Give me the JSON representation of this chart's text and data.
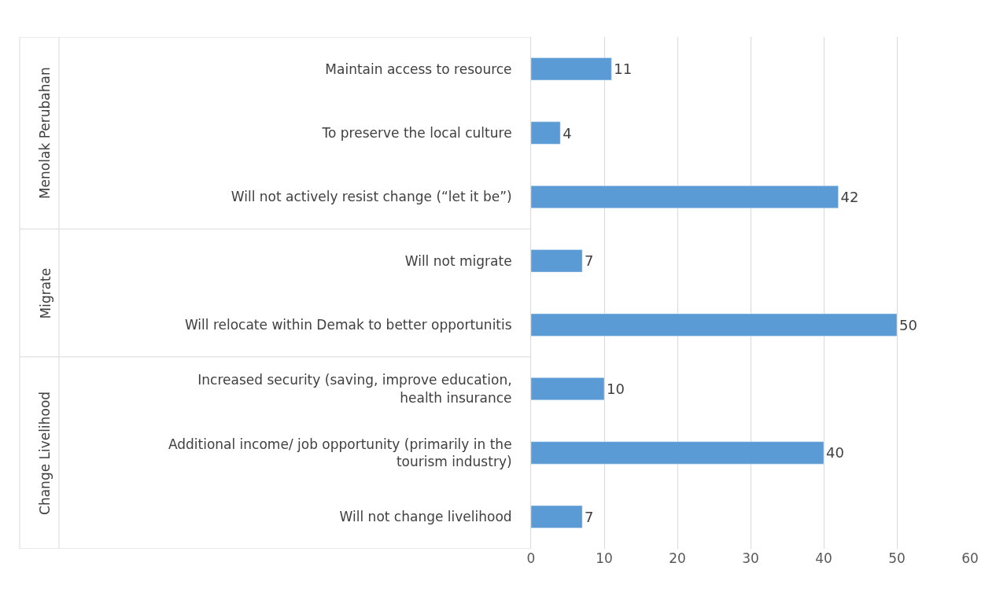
{
  "chart_data": {
    "type": "bar",
    "orientation": "horizontal",
    "categories": [
      "Maintain access to resource",
      "To preserve the local culture",
      "Will not actively resist change (“let it be”)",
      "Will not migrate",
      "Will relocate within Demak to better opportunitis",
      "Increased security (saving, improve education, health insurance",
      "Additional income/ job opportunity (primarily in the tourism industry)",
      "Will not change livelihood"
    ],
    "values": [
      11,
      4,
      42,
      7,
      50,
      10,
      40,
      7
    ],
    "color": "#5b9bd5",
    "xlim": [
      0,
      60
    ],
    "xticks": [
      0,
      10,
      20,
      30,
      40,
      50,
      60
    ],
    "grid": "x",
    "data_labels": true,
    "legend": false,
    "annotations": [
      "Menolak Perubahan",
      "Migrate",
      "Change Livelihood"
    ]
  }
}
